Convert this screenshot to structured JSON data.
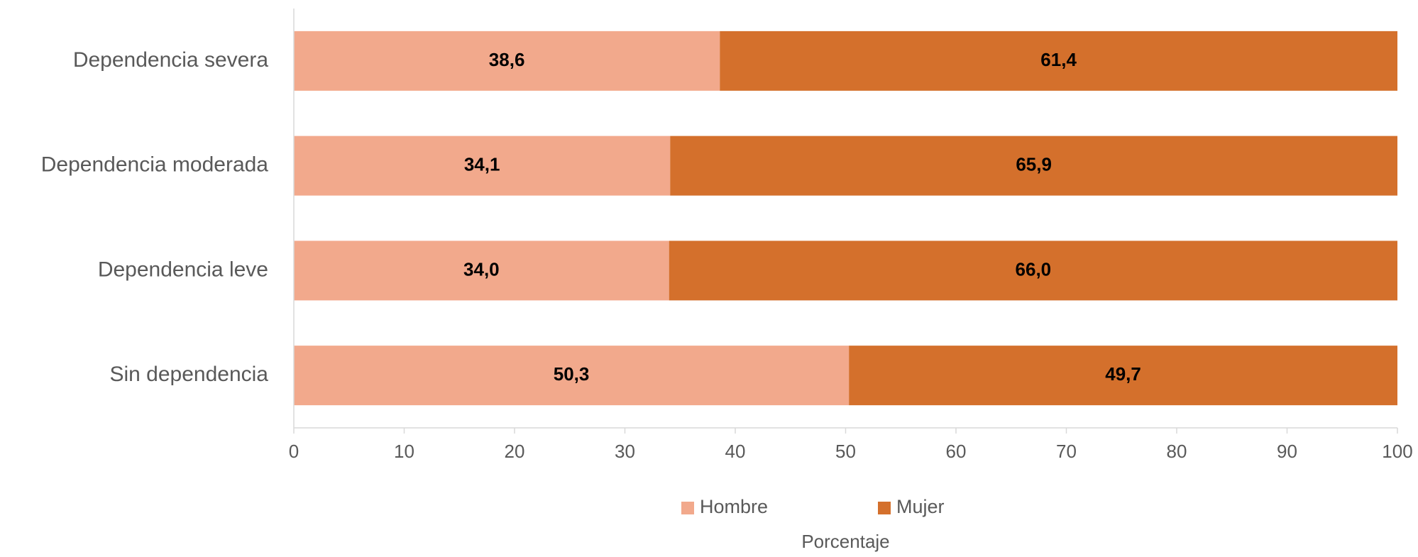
{
  "chart_data": {
    "type": "bar",
    "orientation": "horizontal",
    "stacked": true,
    "categories": [
      "Dependencia severa",
      "Dependencia moderada",
      "Dependencia leve",
      "Sin dependencia"
    ],
    "series": [
      {
        "name": "Hombre",
        "values": [
          38.6,
          34.1,
          34.0,
          50.3
        ],
        "labels": [
          "38,6",
          "34,1",
          "34,0",
          "50,3"
        ],
        "color": "#F2A98C"
      },
      {
        "name": "Mujer",
        "values": [
          61.4,
          65.9,
          66.0,
          49.7
        ],
        "labels": [
          "61,4",
          "65,9",
          "66,0",
          "49,7"
        ],
        "color": "#D4702C"
      }
    ],
    "xlim": [
      0,
      100
    ],
    "xticks": [
      "0",
      "10",
      "20",
      "30",
      "40",
      "50",
      "60",
      "70",
      "80",
      "90",
      "100"
    ],
    "xlabel": "Porcentaje",
    "ylabel": "",
    "title": "",
    "grid": false,
    "legend_position": "bottom"
  }
}
